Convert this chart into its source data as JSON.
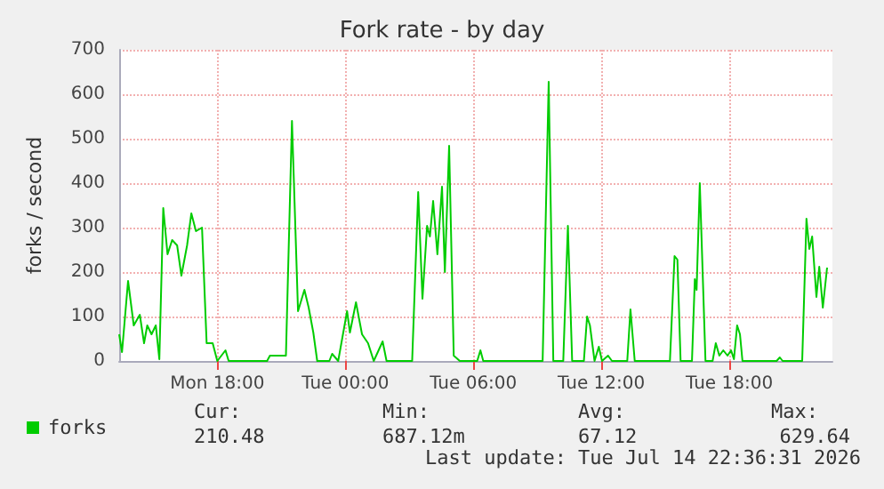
{
  "chart_data": {
    "type": "line",
    "title": "Fork rate - by day",
    "ylabel": "forks / second",
    "xlim": [
      "2026-07-13T13:24",
      "2026-07-14T22:50"
    ],
    "xticks": [
      {
        "value": "2026-07-13T18:00",
        "label": "Mon 18:00"
      },
      {
        "value": "2026-07-14T00:00",
        "label": "Tue 00:00"
      },
      {
        "value": "2026-07-14T06:00",
        "label": "Tue 06:00"
      },
      {
        "value": "2026-07-14T12:00",
        "label": "Tue 12:00"
      },
      {
        "value": "2026-07-14T18:00",
        "label": "Tue 18:00"
      }
    ],
    "ylim": [
      0,
      700
    ],
    "yticks": [
      0,
      100,
      200,
      300,
      400,
      500,
      600,
      700
    ],
    "grid": true,
    "legend": "bottom left",
    "marker": "none",
    "line_style": "solid",
    "annotations": [
      "Cur:",
      "210.48",
      "Min:",
      "687.12m",
      "Avg:",
      "67.12",
      "Max:",
      "629.64",
      "Last update: Tue Jul 14 22:36:31 2026"
    ],
    "series": [
      {
        "name": "forks",
        "color": "#00cc00",
        "x": [
          "2026-07-13T13:24",
          "2026-07-13T13:32",
          "2026-07-13T13:49",
          "2026-07-13T14:05",
          "2026-07-13T14:22",
          "2026-07-13T14:34",
          "2026-07-13T14:43",
          "2026-07-13T14:55",
          "2026-07-13T15:07",
          "2026-07-13T15:17",
          "2026-07-13T15:28",
          "2026-07-13T15:40",
          "2026-07-13T15:53",
          "2026-07-13T16:07",
          "2026-07-13T16:19",
          "2026-07-13T16:35",
          "2026-07-13T16:47",
          "2026-07-13T17:00",
          "2026-07-13T17:17",
          "2026-07-13T17:30",
          "2026-07-13T17:47",
          "2026-07-13T18:00",
          "2026-07-13T18:23",
          "2026-07-13T18:32",
          "2026-07-13T20:20",
          "2026-07-13T20:28",
          "2026-07-13T21:13",
          "2026-07-13T21:30",
          "2026-07-13T21:47",
          "2026-07-13T22:05",
          "2026-07-13T22:17",
          "2026-07-13T22:30",
          "2026-07-13T22:41",
          "2026-07-13T23:15",
          "2026-07-13T23:23",
          "2026-07-13T23:40",
          "2026-07-14T00:05",
          "2026-07-14T00:13",
          "2026-07-14T00:30",
          "2026-07-14T00:47",
          "2026-07-14T01:04",
          "2026-07-14T01:20",
          "2026-07-14T01:45",
          "2026-07-14T01:56",
          "2026-07-14T03:08",
          "2026-07-14T03:25",
          "2026-07-14T03:37",
          "2026-07-14T03:50",
          "2026-07-14T03:58",
          "2026-07-14T04:07",
          "2026-07-14T04:19",
          "2026-07-14T04:32",
          "2026-07-14T04:40",
          "2026-07-14T04:52",
          "2026-07-14T05:05",
          "2026-07-14T05:22",
          "2026-07-14T06:11",
          "2026-07-14T06:20",
          "2026-07-14T06:28",
          "2026-07-14T09:15",
          "2026-07-14T09:32",
          "2026-07-14T09:45",
          "2026-07-14T10:13",
          "2026-07-14T10:26",
          "2026-07-14T10:38",
          "2026-07-14T11:11",
          "2026-07-14T11:20",
          "2026-07-14T11:28",
          "2026-07-14T11:41",
          "2026-07-14T11:53",
          "2026-07-14T12:02",
          "2026-07-14T12:19",
          "2026-07-14T12:30",
          "2026-07-14T13:13",
          "2026-07-14T13:22",
          "2026-07-14T13:34",
          "2026-07-14T15:13",
          "2026-07-14T15:26",
          "2026-07-14T15:34",
          "2026-07-14T15:43",
          "2026-07-14T16:15",
          "2026-07-14T16:23",
          "2026-07-14T16:28",
          "2026-07-14T16:37",
          "2026-07-14T16:45",
          "2026-07-14T16:53",
          "2026-07-14T17:13",
          "2026-07-14T17:22",
          "2026-07-14T17:32",
          "2026-07-14T17:43",
          "2026-07-14T17:55",
          "2026-07-14T18:05",
          "2026-07-14T18:13",
          "2026-07-14T18:22",
          "2026-07-14T18:30",
          "2026-07-14T18:37",
          "2026-07-14T20:13",
          "2026-07-14T20:22",
          "2026-07-14T20:30",
          "2026-07-14T21:25",
          "2026-07-14T21:37",
          "2026-07-14T21:45",
          "2026-07-14T21:53",
          "2026-07-14T22:05",
          "2026-07-14T22:13",
          "2026-07-14T22:23",
          "2026-07-14T22:35"
        ],
        "values": [
          60,
          20,
          180,
          80,
          104,
          40,
          80,
          60,
          80,
          4,
          344,
          240,
          272,
          260,
          192,
          260,
          332,
          292,
          300,
          40,
          40,
          0,
          24,
          0,
          0,
          12,
          12,
          540,
          112,
          160,
          120,
          64,
          0,
          0,
          16,
          0,
          112,
          64,
          132,
          60,
          40,
          0,
          44,
          0,
          0,
          380,
          140,
          304,
          280,
          360,
          240,
          392,
          200,
          484,
          12,
          0,
          0,
          24,
          0,
          0,
          628,
          0,
          0,
          304,
          0,
          0,
          100,
          80,
          0,
          32,
          0,
          12,
          0,
          0,
          116,
          0,
          0,
          236,
          228,
          0,
          0,
          184,
          160,
          400,
          200,
          0,
          0,
          40,
          12,
          24,
          12,
          24,
          4,
          80,
          60,
          0,
          0,
          8,
          0,
          0,
          320,
          252,
          280,
          144,
          212,
          120,
          210
        ]
      }
    ]
  }
}
